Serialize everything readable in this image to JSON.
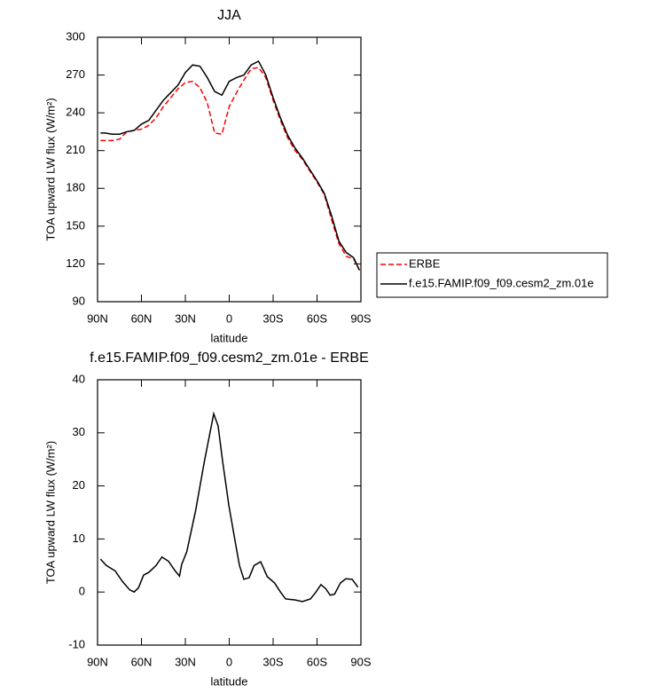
{
  "chart_data": [
    {
      "type": "line",
      "title": "JJA",
      "xlabel": "latitude",
      "ylabel": "TOA upward LW flux (W/m²)",
      "xlim": [
        90,
        -90
      ],
      "xticks": [
        {
          "value": 90,
          "label": "90N"
        },
        {
          "value": 60,
          "label": "60N"
        },
        {
          "value": 30,
          "label": "30N"
        },
        0,
        {
          "value": -30,
          "label": "30S"
        },
        {
          "value": -60,
          "label": "60S"
        },
        {
          "value": -90,
          "label": "90S"
        }
      ],
      "ylim": [
        90,
        300
      ],
      "yticks": [
        90,
        120,
        150,
        180,
        210,
        240,
        270,
        300
      ],
      "legend": "right",
      "x": [
        88,
        85,
        80,
        75,
        70,
        65,
        60,
        55,
        50,
        45,
        40,
        35,
        30,
        25,
        20,
        15,
        10,
        5,
        0,
        -5,
        -10,
        -15,
        -20,
        -25,
        -30,
        -35,
        -40,
        -45,
        -50,
        -55,
        -60,
        -65,
        -70,
        -75,
        -80,
        -85,
        -89
      ],
      "series": [
        {
          "name": "ERBE",
          "color": "#ff0000",
          "dash": true,
          "values": [
            218,
            218,
            218,
            219,
            225,
            226,
            227,
            230,
            236,
            245,
            252,
            259,
            264,
            265,
            260,
            248,
            224,
            223,
            245,
            256,
            266,
            275,
            276,
            268,
            250,
            234,
            220,
            210,
            203,
            194,
            185,
            175,
            155,
            136,
            126,
            124,
            115
          ]
        },
        {
          "name": "f.e15.FAMIP.f09_f09.cesm2_zm.01e",
          "color": "#000000",
          "dash": false,
          "values": [
            224,
            224,
            223,
            223,
            225,
            226,
            231,
            234,
            242,
            250,
            256,
            262,
            272,
            278,
            277,
            268,
            257,
            254,
            265,
            268,
            270,
            278,
            281,
            270,
            252,
            236,
            222,
            212,
            204,
            195,
            186,
            176,
            158,
            138,
            129,
            125,
            115
          ]
        }
      ]
    },
    {
      "type": "line",
      "title": "f.e15.FAMIP.f09_f09.cesm2_zm.01e - ERBE",
      "xlabel": "latitude",
      "ylabel": "TOA upward LW flux (W/m²)",
      "xlim": [
        90,
        -90
      ],
      "xticks": [
        {
          "value": 90,
          "label": "90N"
        },
        {
          "value": 60,
          "label": "60N"
        },
        {
          "value": 30,
          "label": "30N"
        },
        0,
        {
          "value": -30,
          "label": "30S"
        },
        {
          "value": -60,
          "label": "60S"
        },
        {
          "value": -90,
          "label": "90S"
        }
      ],
      "ylim": [
        -10,
        40
      ],
      "yticks": [
        -10,
        0,
        10,
        20,
        30,
        40
      ],
      "x": [
        88,
        84,
        78,
        73,
        68,
        65,
        62,
        58.5,
        55,
        50,
        46,
        41.5,
        37,
        34,
        32.5,
        29,
        23,
        17,
        10.6,
        7.6,
        4.5,
        0.3,
        -4,
        -7,
        -10,
        -13.6,
        -17,
        -21.5,
        -26,
        -31,
        -35,
        -38.5,
        -45,
        -50,
        -55.5,
        -59,
        -62.7,
        -66,
        -69,
        -72,
        -76,
        -79.7,
        -84,
        -88
      ],
      "series": [
        {
          "color": "#000000",
          "values": [
            6.2,
            5.0,
            4.0,
            2.0,
            0.4,
            0,
            0.8,
            3.2,
            3.7,
            5.0,
            6.6,
            5.8,
            4.0,
            3.0,
            5.2,
            7.6,
            15.3,
            24.6,
            33.6,
            31.3,
            24.6,
            16.4,
            9.6,
            5.0,
            2.4,
            2.7,
            5.0,
            5.7,
            2.9,
            1.7,
            0,
            -1.3,
            -1.5,
            -1.8,
            -1.3,
            -0.1,
            1.4,
            0.6,
            -0.6,
            -0.4,
            1.7,
            2.5,
            2.4,
            0.9
          ]
        }
      ]
    }
  ]
}
